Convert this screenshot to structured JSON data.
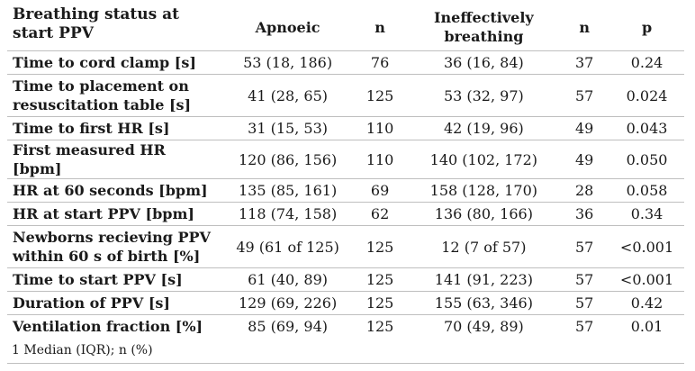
{
  "header": {
    "label": "Breathing status at start PPV",
    "col_apnoeic": "Apnoeic",
    "col_n1": "n",
    "col_ineffective": "Ineffectively breathing",
    "col_n2": "n",
    "col_p": "p"
  },
  "rows": [
    {
      "label": "Time to cord clamp [s]",
      "apnoeic": "53 (18, 186)",
      "n1": "76",
      "ineffective": "36 (16, 84)",
      "n2": "37",
      "p": "0.24"
    },
    {
      "label": "Time to placement on resuscitation table [s]",
      "apnoeic": "41 (28, 65)",
      "n1": "125",
      "ineffective": "53 (32, 97)",
      "n2": "57",
      "p": "0.024"
    },
    {
      "label": "Time to first HR [s]",
      "apnoeic": "31 (15, 53)",
      "n1": "110",
      "ineffective": "42 (19, 96)",
      "n2": "49",
      "p": "0.043"
    },
    {
      "label": "First measured HR [bpm]",
      "apnoeic": "120 (86, 156)",
      "n1": "110",
      "ineffective": "140 (102, 172)",
      "n2": "49",
      "p": "0.050"
    },
    {
      "label": "HR at 60 seconds [bpm]",
      "apnoeic": "135 (85, 161)",
      "n1": "69",
      "ineffective": "158 (128, 170)",
      "n2": "28",
      "p": "0.058"
    },
    {
      "label": "HR at start PPV [bpm]",
      "apnoeic": "118 (74, 158)",
      "n1": "62",
      "ineffective": "136 (80, 166)",
      "n2": "36",
      "p": "0.34"
    },
    {
      "label": "Newborns recieving PPV within 60 s of birth [%]",
      "apnoeic": "49 (61 of 125)",
      "n1": "125",
      "ineffective": "12 (7 of 57)",
      "n2": "57",
      "p": "<0.001"
    },
    {
      "label": "Time to start PPV [s]",
      "apnoeic": "61 (40, 89)",
      "n1": "125",
      "ineffective": "141 (91, 223)",
      "n2": "57",
      "p": "<0.001"
    },
    {
      "label": "Duration of PPV [s]",
      "apnoeic": "129 (69, 226)",
      "n1": "125",
      "ineffective": "155 (63, 346)",
      "n2": "57",
      "p": "0.42"
    },
    {
      "label": "Ventilation fraction [%]",
      "apnoeic": "85 (69, 94)",
      "n1": "125",
      "ineffective": "70 (49, 89)",
      "n2": "57",
      "p": "0.01"
    }
  ],
  "footnote": "1 Median (IQR); n (%)"
}
